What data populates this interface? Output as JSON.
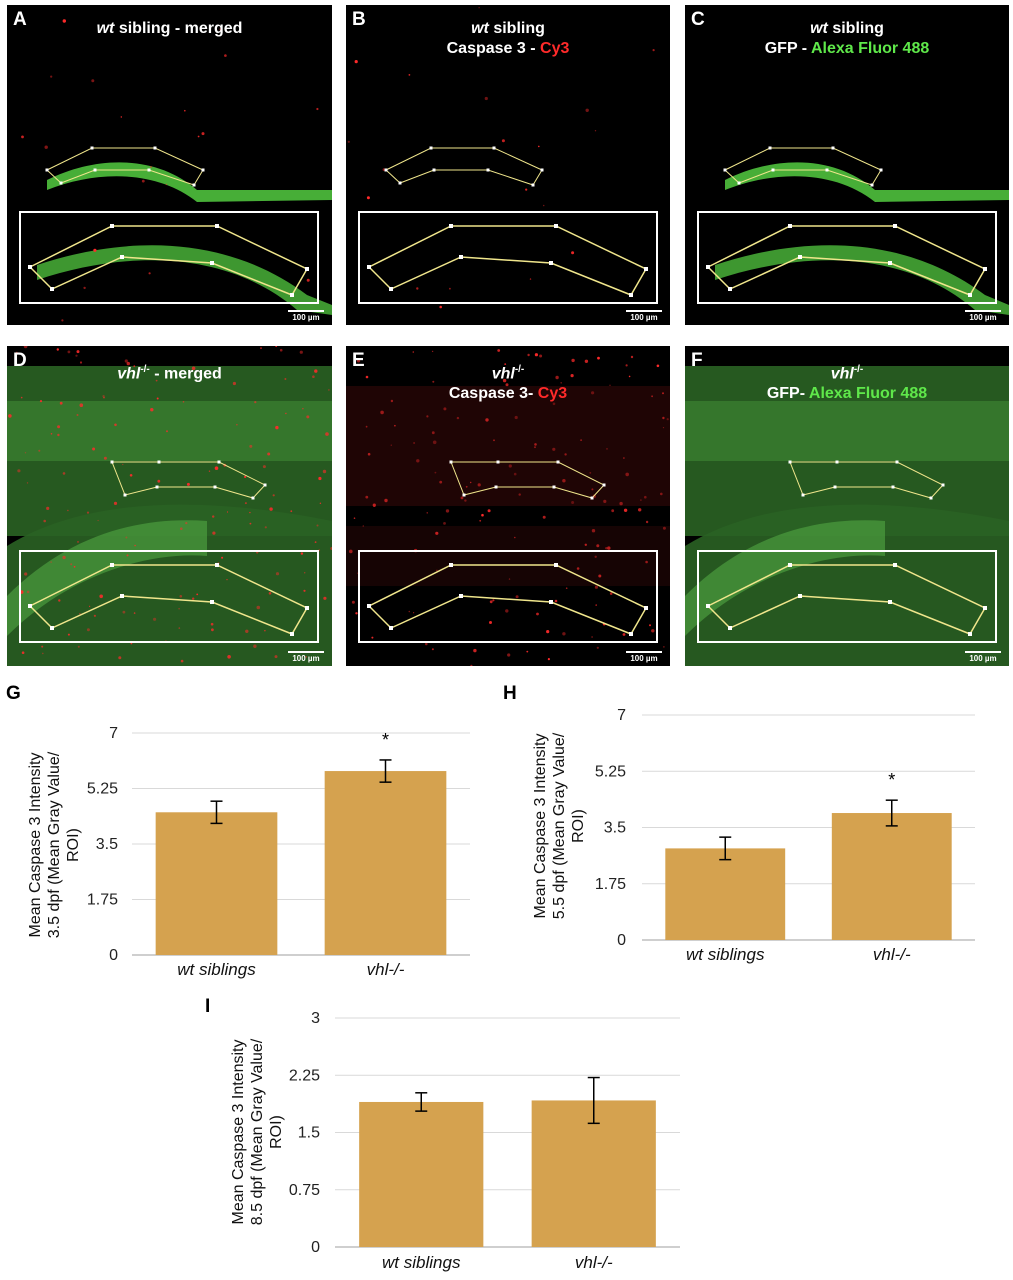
{
  "colors": {
    "bar_fill": "#D5A24F",
    "gridline": "#d9d9d9",
    "roi_outline": "#f0e68c",
    "inset_border": "#ffffff",
    "gfp_green": "#5fe84a",
    "cy3_red": "#ff2a2a"
  },
  "panels": [
    {
      "letter": "A",
      "title_italic": "wt",
      "title_rest": " sibling - merged",
      "line2_prefix": "",
      "line2_colored": "",
      "channel": "merged",
      "scale": "100 µm"
    },
    {
      "letter": "B",
      "title_italic": "wt",
      "title_rest": " sibling",
      "line2_prefix": "Caspase 3 - ",
      "line2_colored": "Cy3",
      "channel": "red",
      "scale": "100 µm"
    },
    {
      "letter": "C",
      "title_italic": "wt",
      "title_rest": " sibling",
      "line2_prefix": "GFP - ",
      "line2_colored": "Alexa Fluor 488",
      "channel": "green",
      "scale": "100 µm"
    },
    {
      "letter": "D",
      "title_italic": "vhl",
      "title_sup": "-/-",
      "title_rest": " - merged",
      "line2_prefix": "",
      "line2_colored": "",
      "channel": "merged",
      "scale": "100 µm"
    },
    {
      "letter": "E",
      "title_italic": "vhl",
      "title_sup": "-/-",
      "title_rest": "",
      "line2_prefix": "Caspase 3- ",
      "line2_colored": "Cy3",
      "channel": "red",
      "scale": "100 µm"
    },
    {
      "letter": "F",
      "title_italic": "vhl",
      "title_sup": "-/-",
      "title_rest": "",
      "line2_prefix": "GFP- ",
      "line2_colored": "Alexa Fluor 488",
      "channel": "green",
      "scale": "100 µm"
    }
  ],
  "chart_data": [
    {
      "panel": "G",
      "type": "bar",
      "categories": [
        "wt siblings",
        "vhl-/-"
      ],
      "values": [
        4.5,
        5.8
      ],
      "errors": [
        0.35,
        0.35
      ],
      "significance": [
        "",
        "*"
      ],
      "ylabel_lines": [
        "Mean Caspase 3 Intensity",
        "3.5 dpf (Mean Gray Value/",
        "ROI)"
      ],
      "yticks": [
        "0",
        "1.75",
        "3.5",
        "5.25",
        "7"
      ],
      "ylim": [
        0,
        7
      ],
      "grid": true
    },
    {
      "panel": "H",
      "type": "bar",
      "categories": [
        "wt siblings",
        "vhl-/-"
      ],
      "values": [
        2.85,
        3.95
      ],
      "errors": [
        0.35,
        0.4
      ],
      "significance": [
        "",
        "*"
      ],
      "ylabel_lines": [
        "Mean Caspase 3  Intensity",
        "5.5 dpf (Mean Gray Value/",
        "ROI)"
      ],
      "yticks": [
        "0",
        "1.75",
        "3.5",
        "5.25",
        "7"
      ],
      "ylim": [
        0,
        7
      ],
      "grid": true
    },
    {
      "panel": "I",
      "type": "bar",
      "categories": [
        "wt siblings",
        "vhl-/-"
      ],
      "values": [
        1.9,
        1.92
      ],
      "errors": [
        0.12,
        0.3
      ],
      "significance": [
        "",
        ""
      ],
      "ylabel_lines": [
        "Mean Caspase 3 Intensity",
        "8.5 dpf (Mean Gray Value/",
        "ROI)"
      ],
      "yticks": [
        "0",
        "0.75",
        "1.5",
        "2.25",
        "3"
      ],
      "ylim": [
        0,
        3
      ],
      "grid": true
    }
  ]
}
